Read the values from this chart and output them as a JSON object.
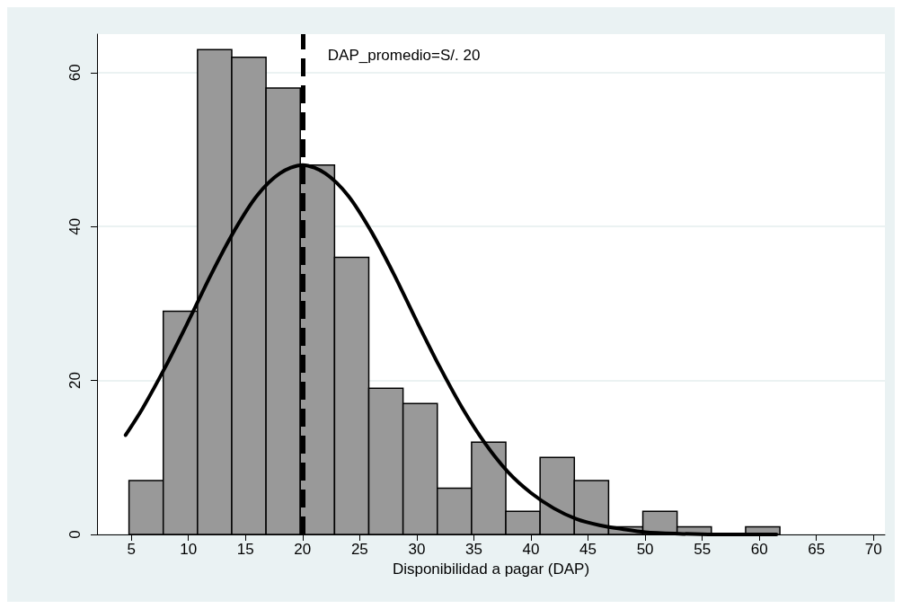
{
  "chart_data": {
    "type": "histogram",
    "xlabel": "Disponibilidad a pagar (DAP)",
    "bins": [
      4.8,
      7.8,
      10.8,
      13.8,
      16.8,
      19.8,
      22.8,
      25.8,
      28.8,
      31.8,
      34.8,
      37.8,
      40.8,
      43.8,
      46.8,
      49.8,
      52.8,
      55.8,
      58.8,
      61.8
    ],
    "values": [
      7,
      29,
      63,
      62,
      58,
      48,
      36,
      19,
      17,
      6,
      12,
      3,
      10,
      7,
      1,
      3,
      1,
      0,
      1
    ],
    "color": "#999999",
    "series": [
      {
        "type": "line",
        "color": "#000000",
        "x": [
          4.5,
          6,
          8,
          10,
          12,
          14,
          16,
          18,
          20,
          22,
          24,
          26,
          28,
          30,
          32,
          34,
          36,
          38,
          40,
          42,
          44,
          46,
          48,
          50,
          53,
          56,
          61.5
        ],
        "values": [
          12.9,
          16.4,
          21.8,
          27.7,
          33.8,
          39.4,
          44.0,
          46.9,
          48,
          46.9,
          44.0,
          39.4,
          33.8,
          27.7,
          21.8,
          16.4,
          11.8,
          8.1,
          5.4,
          3.4,
          2.0,
          1.2,
          0.7,
          0.3,
          0.1,
          0,
          0
        ]
      }
    ],
    "ref_lines": [
      {
        "axis": "x",
        "value": 20,
        "label": "DAP_promedio=S/. 20",
        "color": "#000000",
        "line_style": "dashed"
      }
    ],
    "xlim": [
      2,
      71
    ],
    "xticks": [
      5,
      10,
      15,
      20,
      25,
      30,
      35,
      40,
      45,
      50,
      55,
      60,
      65,
      70
    ],
    "ylim": [
      0,
      65
    ],
    "yticks": [
      0,
      20,
      40,
      60
    ],
    "grid": "y",
    "marker": "none"
  }
}
